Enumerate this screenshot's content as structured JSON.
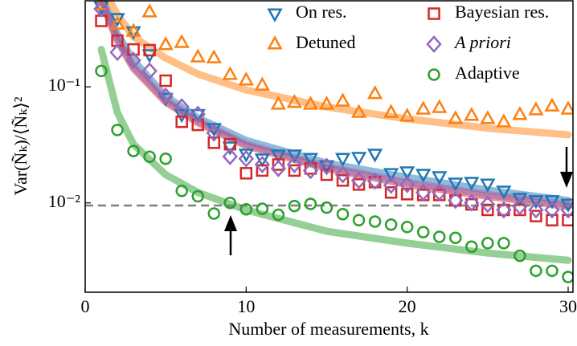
{
  "chart_data": {
    "type": "scatter",
    "xlabel": "Number of measurements, k",
    "ylabel": "Var(Ñₖ)/⟨Ñₖ⟩²",
    "xlim": [
      0,
      30.3
    ],
    "ylim": [
      0.0017,
      0.56
    ],
    "log_y": true,
    "xticks": [
      0,
      10,
      20,
      30
    ],
    "yticks": [
      {
        "value": 0.1,
        "label": "10⁻¹"
      },
      {
        "value": 0.01,
        "label": "10⁻²"
      }
    ],
    "reference_line": 0.0095,
    "x": [
      1,
      2,
      3,
      4,
      5,
      6,
      7,
      8,
      9,
      10,
      11,
      12,
      13,
      14,
      15,
      16,
      17,
      18,
      19,
      20,
      21,
      22,
      23,
      24,
      25,
      26,
      27,
      28,
      29,
      30
    ],
    "fit_x": [
      1,
      2,
      3,
      5,
      7,
      10,
      15,
      20,
      25,
      30
    ],
    "series": [
      {
        "name": "On res.",
        "color": "#1f77b4",
        "marker": "triangle_down",
        "values": [
          0.49,
          0.39,
          0.3,
          0.19,
          0.08,
          0.058,
          0.058,
          0.044,
          0.0304,
          0.0264,
          0.024,
          0.026,
          0.026,
          0.0243,
          0.021,
          0.0243,
          0.0248,
          0.0264,
          0.018,
          0.0186,
          0.0177,
          0.0169,
          0.0149,
          0.0151,
          0.0146,
          0.0127,
          0.011,
          0.0105,
          0.0105,
          0.0098
        ],
        "fit": [
          0.6,
          0.285,
          0.169,
          0.083,
          0.054,
          0.0345,
          0.022,
          0.0166,
          0.0129,
          0.0105
        ]
      },
      {
        "name": "Detuned",
        "color": "#ff7f0e",
        "marker": "triangle_up",
        "values": [
          0.51,
          0.345,
          0.3,
          0.44,
          0.23,
          0.24,
          0.18,
          0.177,
          0.127,
          0.114,
          0.103,
          0.0705,
          0.073,
          0.0705,
          0.0705,
          0.075,
          0.06,
          0.087,
          0.06,
          0.0556,
          0.064,
          0.066,
          0.053,
          0.0565,
          0.053,
          0.0497,
          0.0574,
          0.063,
          0.068,
          0.064
        ],
        "fit": [
          0.75,
          0.42,
          0.27,
          0.177,
          0.129,
          0.094,
          0.067,
          0.053,
          0.044,
          0.0386
        ]
      },
      {
        "name": "Bayesian res.",
        "color": "#d62728",
        "marker": "square",
        "values": [
          0.37,
          0.25,
          0.21,
          0.207,
          0.113,
          0.05,
          0.047,
          0.033,
          0.032,
          0.018,
          0.019,
          0.0214,
          0.019,
          0.0198,
          0.0175,
          0.0156,
          0.0144,
          0.0151,
          0.0123,
          0.0119,
          0.0117,
          0.0117,
          0.0105,
          0.0097,
          0.0087,
          0.0087,
          0.0087,
          0.0077,
          0.0071,
          0.0071
        ],
        "fit": [
          0.55,
          0.25,
          0.144,
          0.074,
          0.049,
          0.031,
          0.0198,
          0.0144,
          0.0114,
          0.0093
        ]
      },
      {
        "name": "A priori",
        "color": "#9467bd",
        "marker": "diamond",
        "values": [
          0.47,
          0.198,
          0.169,
          0.137,
          0.083,
          0.0673,
          0.058,
          0.04,
          0.0251,
          0.024,
          0.0214,
          0.0198,
          0.0214,
          0.019,
          0.0206,
          0.0175,
          0.0156,
          0.0154,
          0.0142,
          0.0144,
          0.0123,
          0.0123,
          0.0105,
          0.01,
          0.0097,
          0.0087,
          0.0093,
          0.0087,
          0.0087,
          0.0087
        ],
        "fit": [
          0.57,
          0.26,
          0.15,
          0.077,
          0.051,
          0.032,
          0.0205,
          0.015,
          0.0118,
          0.0097
        ]
      },
      {
        "name": "Adaptive",
        "color": "#2ca02c",
        "marker": "circle",
        "values": [
          0.137,
          0.0425,
          0.028,
          0.025,
          0.024,
          0.0127,
          0.0114,
          0.0081,
          0.01,
          0.0088,
          0.0089,
          0.0079,
          0.0094,
          0.0098,
          0.0091,
          0.008,
          0.0071,
          0.0069,
          0.0065,
          0.0062,
          0.0056,
          0.0051,
          0.005,
          0.0042,
          0.0045,
          0.0045,
          0.0035,
          0.0026,
          0.0026,
          0.0023
        ],
        "fit": [
          0.21,
          0.06,
          0.032,
          0.0175,
          0.0123,
          0.0087,
          0.0057,
          0.0045,
          0.0037,
          0.0032
        ]
      }
    ]
  }
}
